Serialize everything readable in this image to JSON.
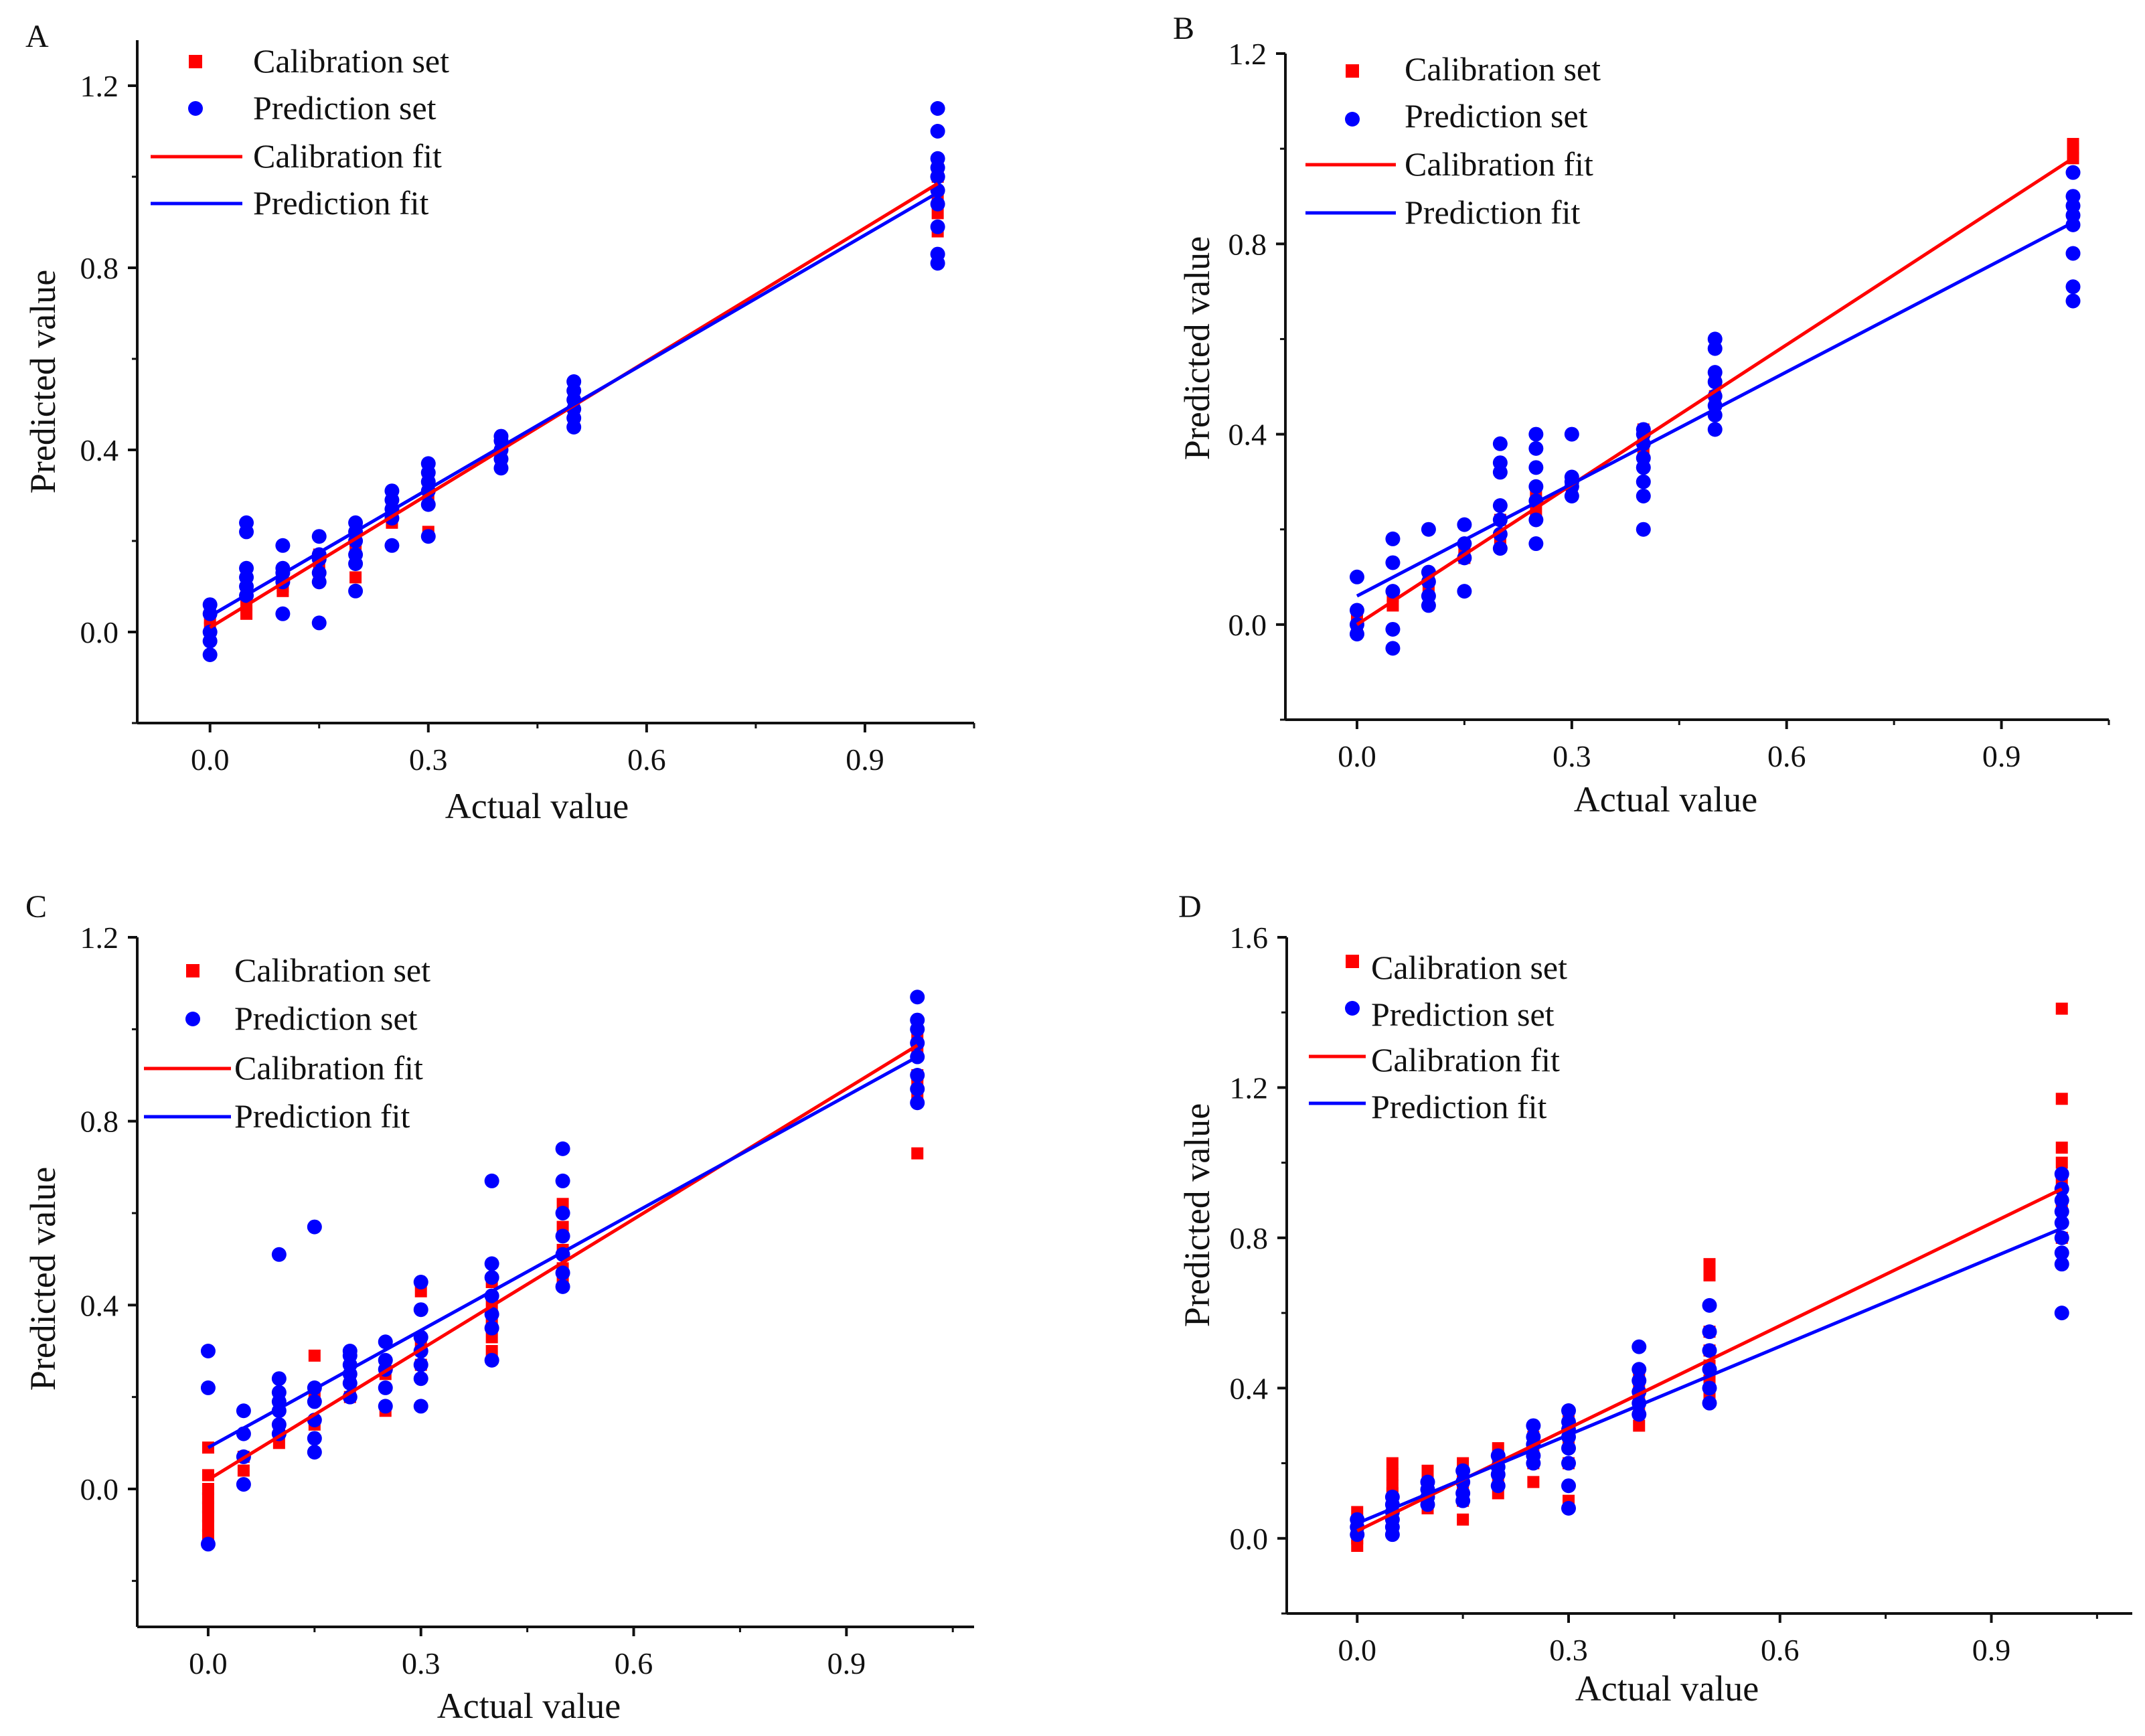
{
  "figure": {
    "background": "#ffffff"
  },
  "colors": {
    "calibration": "#ff0000",
    "prediction": "#0000ff",
    "axis": "#111111"
  },
  "chart_data": [
    {
      "panel": "A",
      "type": "scatter",
      "xlabel": "Actual value",
      "ylabel": "Predicted value",
      "xlim": [
        -0.1,
        1.05
      ],
      "ylim": [
        -0.2,
        1.3
      ],
      "xticks": [
        0.0,
        0.3,
        0.6,
        0.9
      ],
      "xtick_labels": [
        "0.0",
        "0.3",
        "0.6",
        "0.9"
      ],
      "yticks": [
        0.0,
        0.4,
        0.8,
        1.2
      ],
      "ytick_labels": [
        "0.0",
        "0.4",
        "0.8",
        "1.2"
      ],
      "legend": [
        "Calibration set",
        "Prediction set",
        "Calibration fit",
        "Prediction fit"
      ],
      "legend_position": "top-left",
      "series": [
        {
          "name": "Calibration set",
          "kind": "points",
          "marker": "square",
          "x": [
            0,
            0,
            0,
            0.05,
            0.05,
            0.05,
            0.1,
            0.1,
            0.1,
            0.15,
            0.15,
            0.15,
            0.2,
            0.2,
            0.2,
            0.25,
            0.25,
            0.25,
            0.3,
            0.3,
            0.3,
            0.4,
            0.4,
            0.4,
            0.5,
            0.5,
            0.5,
            1,
            1,
            1,
            1,
            1
          ],
          "y": [
            0.01,
            0.03,
            0.05,
            0.04,
            0.06,
            0.09,
            0.09,
            0.1,
            0.12,
            0.13,
            0.15,
            0.17,
            0.12,
            0.18,
            0.2,
            0.24,
            0.26,
            0.28,
            0.22,
            0.3,
            0.33,
            0.38,
            0.4,
            0.42,
            0.47,
            0.5,
            0.52,
            0.88,
            0.92,
            0.96,
            1.0,
            1.02
          ]
        },
        {
          "name": "Prediction set",
          "kind": "points",
          "marker": "circle",
          "x": [
            0,
            0,
            0,
            0,
            0,
            0.05,
            0.05,
            0.05,
            0.05,
            0.05,
            0.05,
            0.1,
            0.1,
            0.1,
            0.1,
            0.1,
            0.15,
            0.15,
            0.15,
            0.15,
            0.15,
            0.15,
            0.2,
            0.2,
            0.2,
            0.2,
            0.2,
            0.2,
            0.25,
            0.25,
            0.25,
            0.25,
            0.25,
            0.3,
            0.3,
            0.3,
            0.3,
            0.3,
            0.3,
            0.4,
            0.4,
            0.4,
            0.4,
            0.4,
            0.5,
            0.5,
            0.5,
            0.5,
            0.5,
            0.5,
            1,
            1,
            1,
            1,
            1,
            1,
            1,
            1,
            1,
            1,
            1
          ],
          "y": [
            -0.05,
            -0.02,
            0.0,
            0.04,
            0.06,
            0.08,
            0.1,
            0.12,
            0.14,
            0.22,
            0.24,
            0.04,
            0.11,
            0.13,
            0.14,
            0.19,
            0.02,
            0.11,
            0.13,
            0.16,
            0.17,
            0.21,
            0.09,
            0.15,
            0.17,
            0.2,
            0.22,
            0.24,
            0.19,
            0.25,
            0.27,
            0.29,
            0.31,
            0.21,
            0.28,
            0.31,
            0.33,
            0.35,
            0.37,
            0.36,
            0.38,
            0.4,
            0.42,
            0.43,
            0.45,
            0.47,
            0.49,
            0.51,
            0.53,
            0.55,
            0.81,
            0.83,
            0.89,
            0.94,
            0.97,
            1.0,
            1.02,
            1.04,
            1.1,
            1.15,
            1.0
          ]
        },
        {
          "name": "Calibration fit",
          "kind": "line",
          "x": [
            0,
            1
          ],
          "y": [
            0.01,
            0.985
          ]
        },
        {
          "name": "Prediction fit",
          "kind": "line",
          "x": [
            0,
            1
          ],
          "y": [
            0.035,
            0.965
          ]
        }
      ]
    },
    {
      "panel": "B",
      "type": "scatter",
      "xlabel": "Actual value",
      "ylabel": "Predicted value",
      "xlim": [
        -0.1,
        1.05
      ],
      "ylim": [
        -0.2,
        1.2
      ],
      "xticks": [
        0.0,
        0.3,
        0.6,
        0.9
      ],
      "xtick_labels": [
        "0.0",
        "0.3",
        "0.6",
        "0.9"
      ],
      "yticks": [
        0.0,
        0.4,
        0.8,
        1.2
      ],
      "ytick_labels": [
        "0.0",
        "0.4",
        "0.8",
        "1.2"
      ],
      "legend": [
        "Calibration set",
        "Prediction set",
        "Calibration fit",
        "Prediction fit"
      ],
      "legend_position": "top-left",
      "series": [
        {
          "name": "Calibration set",
          "kind": "points",
          "marker": "square",
          "x": [
            0,
            0,
            0.05,
            0.05,
            0.1,
            0.1,
            0.15,
            0.15,
            0.2,
            0.2,
            0.25,
            0.25,
            0.3,
            0.3,
            0.4,
            0.4,
            0.4,
            0.5,
            0.5,
            1,
            1,
            1
          ],
          "y": [
            0.0,
            0.02,
            0.04,
            0.06,
            0.08,
            0.1,
            0.14,
            0.16,
            0.18,
            0.22,
            0.24,
            0.27,
            0.28,
            0.3,
            0.36,
            0.39,
            0.41,
            0.48,
            0.52,
            0.98,
            1.0,
            1.01
          ]
        },
        {
          "name": "Prediction set",
          "kind": "points",
          "marker": "circle",
          "x": [
            0,
            0,
            0,
            0,
            0.05,
            0.05,
            0.05,
            0.05,
            0.05,
            0.1,
            0.1,
            0.1,
            0.1,
            0.1,
            0.15,
            0.15,
            0.15,
            0.15,
            0.2,
            0.2,
            0.2,
            0.2,
            0.2,
            0.2,
            0.2,
            0.25,
            0.25,
            0.25,
            0.25,
            0.25,
            0.25,
            0.25,
            0.3,
            0.3,
            0.3,
            0.3,
            0.3,
            0.4,
            0.4,
            0.4,
            0.4,
            0.4,
            0.4,
            0.4,
            0.4,
            0.5,
            0.5,
            0.5,
            0.5,
            0.5,
            0.5,
            0.5,
            0.5,
            1,
            1,
            1,
            1,
            1,
            1,
            1,
            1
          ],
          "y": [
            -0.02,
            0.0,
            0.03,
            0.1,
            -0.05,
            -0.01,
            0.07,
            0.13,
            0.18,
            0.04,
            0.06,
            0.09,
            0.11,
            0.2,
            0.07,
            0.14,
            0.17,
            0.21,
            0.16,
            0.19,
            0.22,
            0.25,
            0.32,
            0.34,
            0.38,
            0.17,
            0.22,
            0.26,
            0.29,
            0.33,
            0.37,
            0.4,
            0.27,
            0.29,
            0.3,
            0.31,
            0.4,
            0.2,
            0.27,
            0.3,
            0.33,
            0.35,
            0.38,
            0.4,
            0.41,
            0.41,
            0.44,
            0.46,
            0.48,
            0.51,
            0.53,
            0.58,
            0.6,
            0.68,
            0.71,
            0.78,
            0.84,
            0.86,
            0.88,
            0.9,
            0.95
          ]
        },
        {
          "name": "Calibration fit",
          "kind": "line",
          "x": [
            0,
            1
          ],
          "y": [
            0.0,
            0.98
          ]
        },
        {
          "name": "Prediction fit",
          "kind": "line",
          "x": [
            0,
            1
          ],
          "y": [
            0.06,
            0.845
          ]
        }
      ]
    },
    {
      "panel": "C",
      "type": "scatter",
      "xlabel": "Actual value",
      "ylabel": "Predicted value",
      "xlim": [
        -0.1,
        1.08
      ],
      "ylim": [
        -0.3,
        1.2
      ],
      "xticks": [
        0.0,
        0.3,
        0.6,
        0.9
      ],
      "xtick_labels": [
        "0.0",
        "0.3",
        "0.6",
        "0.9"
      ],
      "yticks": [
        0.0,
        0.4,
        0.8,
        1.2
      ],
      "ytick_labels": [
        "0.0",
        "0.4",
        "0.8",
        "1.2"
      ],
      "legend": [
        "Calibration set",
        "Prediction set",
        "Calibration fit",
        "Prediction fit"
      ],
      "legend_position": "top-left",
      "series": [
        {
          "name": "Calibration set",
          "kind": "points",
          "marker": "square",
          "x": [
            0,
            0,
            0,
            0,
            0,
            0,
            0,
            0,
            0.05,
            0.05,
            0.1,
            0.1,
            0.15,
            0.15,
            0.15,
            0.2,
            0.2,
            0.25,
            0.25,
            0.3,
            0.3,
            0.3,
            0.4,
            0.4,
            0.4,
            0.4,
            0.4,
            0.5,
            0.5,
            0.5,
            0.5,
            0.5,
            1,
            1,
            1,
            1,
            1,
            1
          ],
          "y": [
            -0.1,
            -0.08,
            -0.06,
            -0.04,
            -0.02,
            0.0,
            0.03,
            0.09,
            0.04,
            0.07,
            0.1,
            0.13,
            0.14,
            0.2,
            0.29,
            0.2,
            0.24,
            0.17,
            0.25,
            0.27,
            0.32,
            0.43,
            0.3,
            0.33,
            0.36,
            0.4,
            0.45,
            0.45,
            0.48,
            0.52,
            0.57,
            0.62,
            0.73,
            0.85,
            0.88,
            0.9,
            0.95,
            0.99
          ]
        },
        {
          "name": "Prediction set",
          "kind": "points",
          "marker": "circle",
          "x": [
            0,
            0,
            0,
            0.05,
            0.05,
            0.05,
            0.05,
            0.1,
            0.1,
            0.1,
            0.1,
            0.1,
            0.1,
            0.1,
            0.15,
            0.15,
            0.15,
            0.15,
            0.15,
            0.15,
            0.2,
            0.2,
            0.2,
            0.2,
            0.2,
            0.2,
            0.25,
            0.25,
            0.25,
            0.25,
            0.25,
            0.3,
            0.3,
            0.3,
            0.3,
            0.3,
            0.3,
            0.3,
            0.4,
            0.4,
            0.4,
            0.4,
            0.4,
            0.4,
            0.4,
            0.5,
            0.5,
            0.5,
            0.5,
            0.5,
            0.5,
            0.5,
            1,
            1,
            1,
            1,
            1,
            1,
            1,
            1
          ],
          "y": [
            -0.12,
            0.22,
            0.3,
            0.01,
            0.07,
            0.12,
            0.17,
            0.12,
            0.14,
            0.17,
            0.19,
            0.21,
            0.24,
            0.51,
            0.08,
            0.11,
            0.15,
            0.19,
            0.22,
            0.57,
            0.2,
            0.23,
            0.25,
            0.27,
            0.29,
            0.3,
            0.18,
            0.22,
            0.26,
            0.28,
            0.32,
            0.18,
            0.24,
            0.27,
            0.3,
            0.33,
            0.39,
            0.45,
            0.28,
            0.35,
            0.38,
            0.42,
            0.46,
            0.49,
            0.67,
            0.44,
            0.47,
            0.51,
            0.55,
            0.6,
            0.67,
            0.74,
            0.84,
            0.87,
            0.9,
            0.94,
            0.97,
            1.0,
            1.02,
            1.07
          ]
        },
        {
          "name": "Calibration fit",
          "kind": "line",
          "x": [
            0,
            1
          ],
          "y": [
            0.02,
            0.965
          ]
        },
        {
          "name": "Prediction fit",
          "kind": "line",
          "x": [
            0,
            1
          ],
          "y": [
            0.09,
            0.94
          ]
        }
      ]
    },
    {
      "panel": "D",
      "type": "scatter",
      "xlabel": "Actual value",
      "ylabel": "Predicted value",
      "xlim": [
        -0.1,
        1.1
      ],
      "ylim": [
        -0.2,
        1.6
      ],
      "xticks": [
        0.0,
        0.3,
        0.6,
        0.9
      ],
      "xtick_labels": [
        "0.0",
        "0.3",
        "0.6",
        "0.9"
      ],
      "yticks": [
        0.0,
        0.4,
        0.8,
        1.2,
        1.6
      ],
      "ytick_labels": [
        "0.0",
        "0.4",
        "0.8",
        "1.2",
        "1.6"
      ],
      "legend": [
        "Calibration set",
        "Prediction set",
        "Calibration fit",
        "Prediction fit"
      ],
      "legend_position": "top-left",
      "series": [
        {
          "name": "Calibration set",
          "kind": "points",
          "marker": "square",
          "x": [
            0,
            0,
            0,
            0,
            0.05,
            0.05,
            0.05,
            0.05,
            0.05,
            0.05,
            0.05,
            0.1,
            0.1,
            0.1,
            0.1,
            0.1,
            0.15,
            0.15,
            0.15,
            0.15,
            0.15,
            0.15,
            0.2,
            0.2,
            0.2,
            0.2,
            0.2,
            0.25,
            0.25,
            0.25,
            0.25,
            0.3,
            0.3,
            0.3,
            0.3,
            0.3,
            0.4,
            0.4,
            0.4,
            0.4,
            0.4,
            0.5,
            0.5,
            0.5,
            0.5,
            0.5,
            0.5,
            0.5,
            1,
            1,
            1,
            1,
            1,
            1,
            1
          ],
          "y": [
            -0.02,
            0.0,
            0.03,
            0.07,
            0.05,
            0.08,
            0.1,
            0.12,
            0.14,
            0.17,
            0.2,
            0.08,
            0.1,
            0.13,
            0.15,
            0.18,
            0.05,
            0.1,
            0.13,
            0.15,
            0.17,
            0.2,
            0.12,
            0.15,
            0.18,
            0.21,
            0.24,
            0.15,
            0.2,
            0.23,
            0.27,
            0.1,
            0.2,
            0.25,
            0.28,
            0.32,
            0.3,
            0.34,
            0.37,
            0.4,
            0.44,
            0.38,
            0.42,
            0.46,
            0.5,
            0.55,
            0.7,
            0.73,
            0.8,
            0.88,
            0.95,
            1.0,
            1.04,
            1.17,
            1.41
          ]
        },
        {
          "name": "Prediction set",
          "kind": "points",
          "marker": "circle",
          "x": [
            0,
            0,
            0,
            0.05,
            0.05,
            0.05,
            0.05,
            0.05,
            0.05,
            0.1,
            0.1,
            0.1,
            0.1,
            0.15,
            0.15,
            0.15,
            0.15,
            0.2,
            0.2,
            0.2,
            0.2,
            0.25,
            0.25,
            0.25,
            0.25,
            0.25,
            0.3,
            0.3,
            0.3,
            0.3,
            0.3,
            0.3,
            0.3,
            0.3,
            0.4,
            0.4,
            0.4,
            0.4,
            0.4,
            0.4,
            0.5,
            0.5,
            0.5,
            0.5,
            0.5,
            0.5,
            1,
            1,
            1,
            1,
            1,
            1,
            1,
            1,
            1
          ],
          "y": [
            0.01,
            0.03,
            0.05,
            0.01,
            0.03,
            0.05,
            0.07,
            0.09,
            0.11,
            0.09,
            0.11,
            0.13,
            0.15,
            0.1,
            0.12,
            0.15,
            0.18,
            0.14,
            0.17,
            0.19,
            0.22,
            0.2,
            0.22,
            0.25,
            0.27,
            0.3,
            0.08,
            0.14,
            0.2,
            0.24,
            0.27,
            0.29,
            0.31,
            0.34,
            0.33,
            0.36,
            0.39,
            0.42,
            0.45,
            0.51,
            0.36,
            0.4,
            0.45,
            0.5,
            0.55,
            0.62,
            0.6,
            0.73,
            0.76,
            0.8,
            0.84,
            0.87,
            0.9,
            0.93,
            0.97
          ]
        },
        {
          "name": "Calibration fit",
          "kind": "line",
          "x": [
            0,
            1
          ],
          "y": [
            0.02,
            0.93
          ]
        },
        {
          "name": "Prediction fit",
          "kind": "line",
          "x": [
            0,
            1
          ],
          "y": [
            0.04,
            0.825
          ]
        }
      ]
    }
  ]
}
